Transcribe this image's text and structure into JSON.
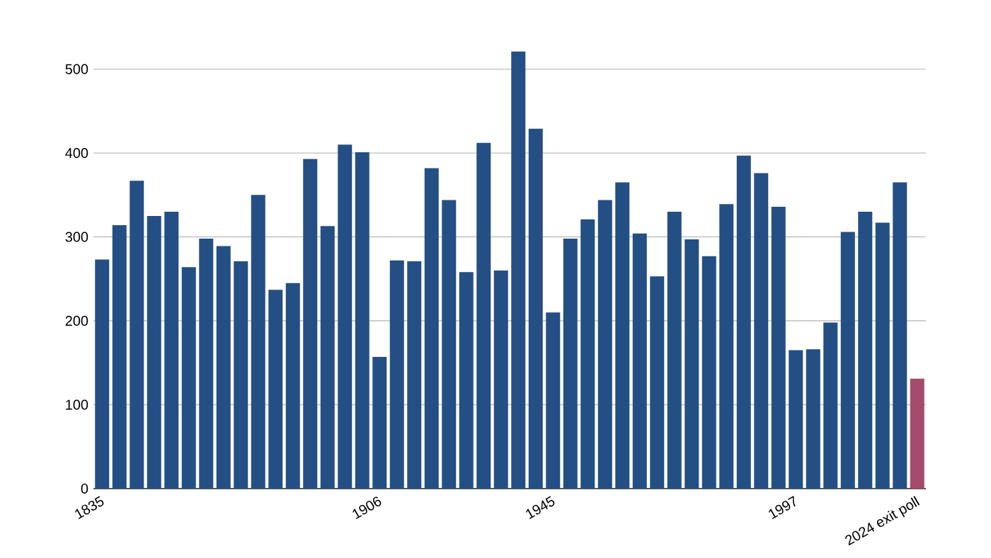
{
  "chart_data": {
    "type": "bar",
    "categories": [
      "1835",
      null,
      null,
      null,
      null,
      null,
      null,
      null,
      null,
      null,
      null,
      null,
      null,
      null,
      null,
      null,
      "1906",
      null,
      null,
      null,
      null,
      null,
      null,
      null,
      null,
      null,
      "1945",
      null,
      null,
      null,
      null,
      null,
      null,
      null,
      null,
      null,
      null,
      null,
      null,
      null,
      "1997",
      null,
      null,
      null,
      null,
      null,
      null,
      "2024 exit poll"
    ],
    "values": [
      273,
      314,
      367,
      325,
      330,
      264,
      298,
      289,
      271,
      350,
      237,
      245,
      393,
      313,
      410,
      401,
      157,
      272,
      271,
      382,
      344,
      258,
      412,
      260,
      521,
      429,
      210,
      298,
      321,
      344,
      365,
      304,
      253,
      330,
      297,
      277,
      339,
      397,
      376,
      336,
      165,
      166,
      198,
      306,
      330,
      317,
      365,
      131
    ],
    "colors": [
      "#244f84",
      "#244f84",
      "#244f84",
      "#244f84",
      "#244f84",
      "#244f84",
      "#244f84",
      "#244f84",
      "#244f84",
      "#244f84",
      "#244f84",
      "#244f84",
      "#244f84",
      "#244f84",
      "#244f84",
      "#244f84",
      "#244f84",
      "#244f84",
      "#244f84",
      "#244f84",
      "#244f84",
      "#244f84",
      "#244f84",
      "#244f84",
      "#244f84",
      "#244f84",
      "#244f84",
      "#244f84",
      "#244f84",
      "#244f84",
      "#244f84",
      "#244f84",
      "#244f84",
      "#244f84",
      "#244f84",
      "#244f84",
      "#244f84",
      "#244f84",
      "#244f84",
      "#244f84",
      "#244f84",
      "#244f84",
      "#244f84",
      "#244f84",
      "#244f84",
      "#244f84",
      "#244f84",
      "#a44a6a"
    ],
    "ylim": [
      0,
      525
    ],
    "yticks": [
      0,
      100,
      200,
      300,
      400,
      500
    ],
    "grid": "y"
  }
}
